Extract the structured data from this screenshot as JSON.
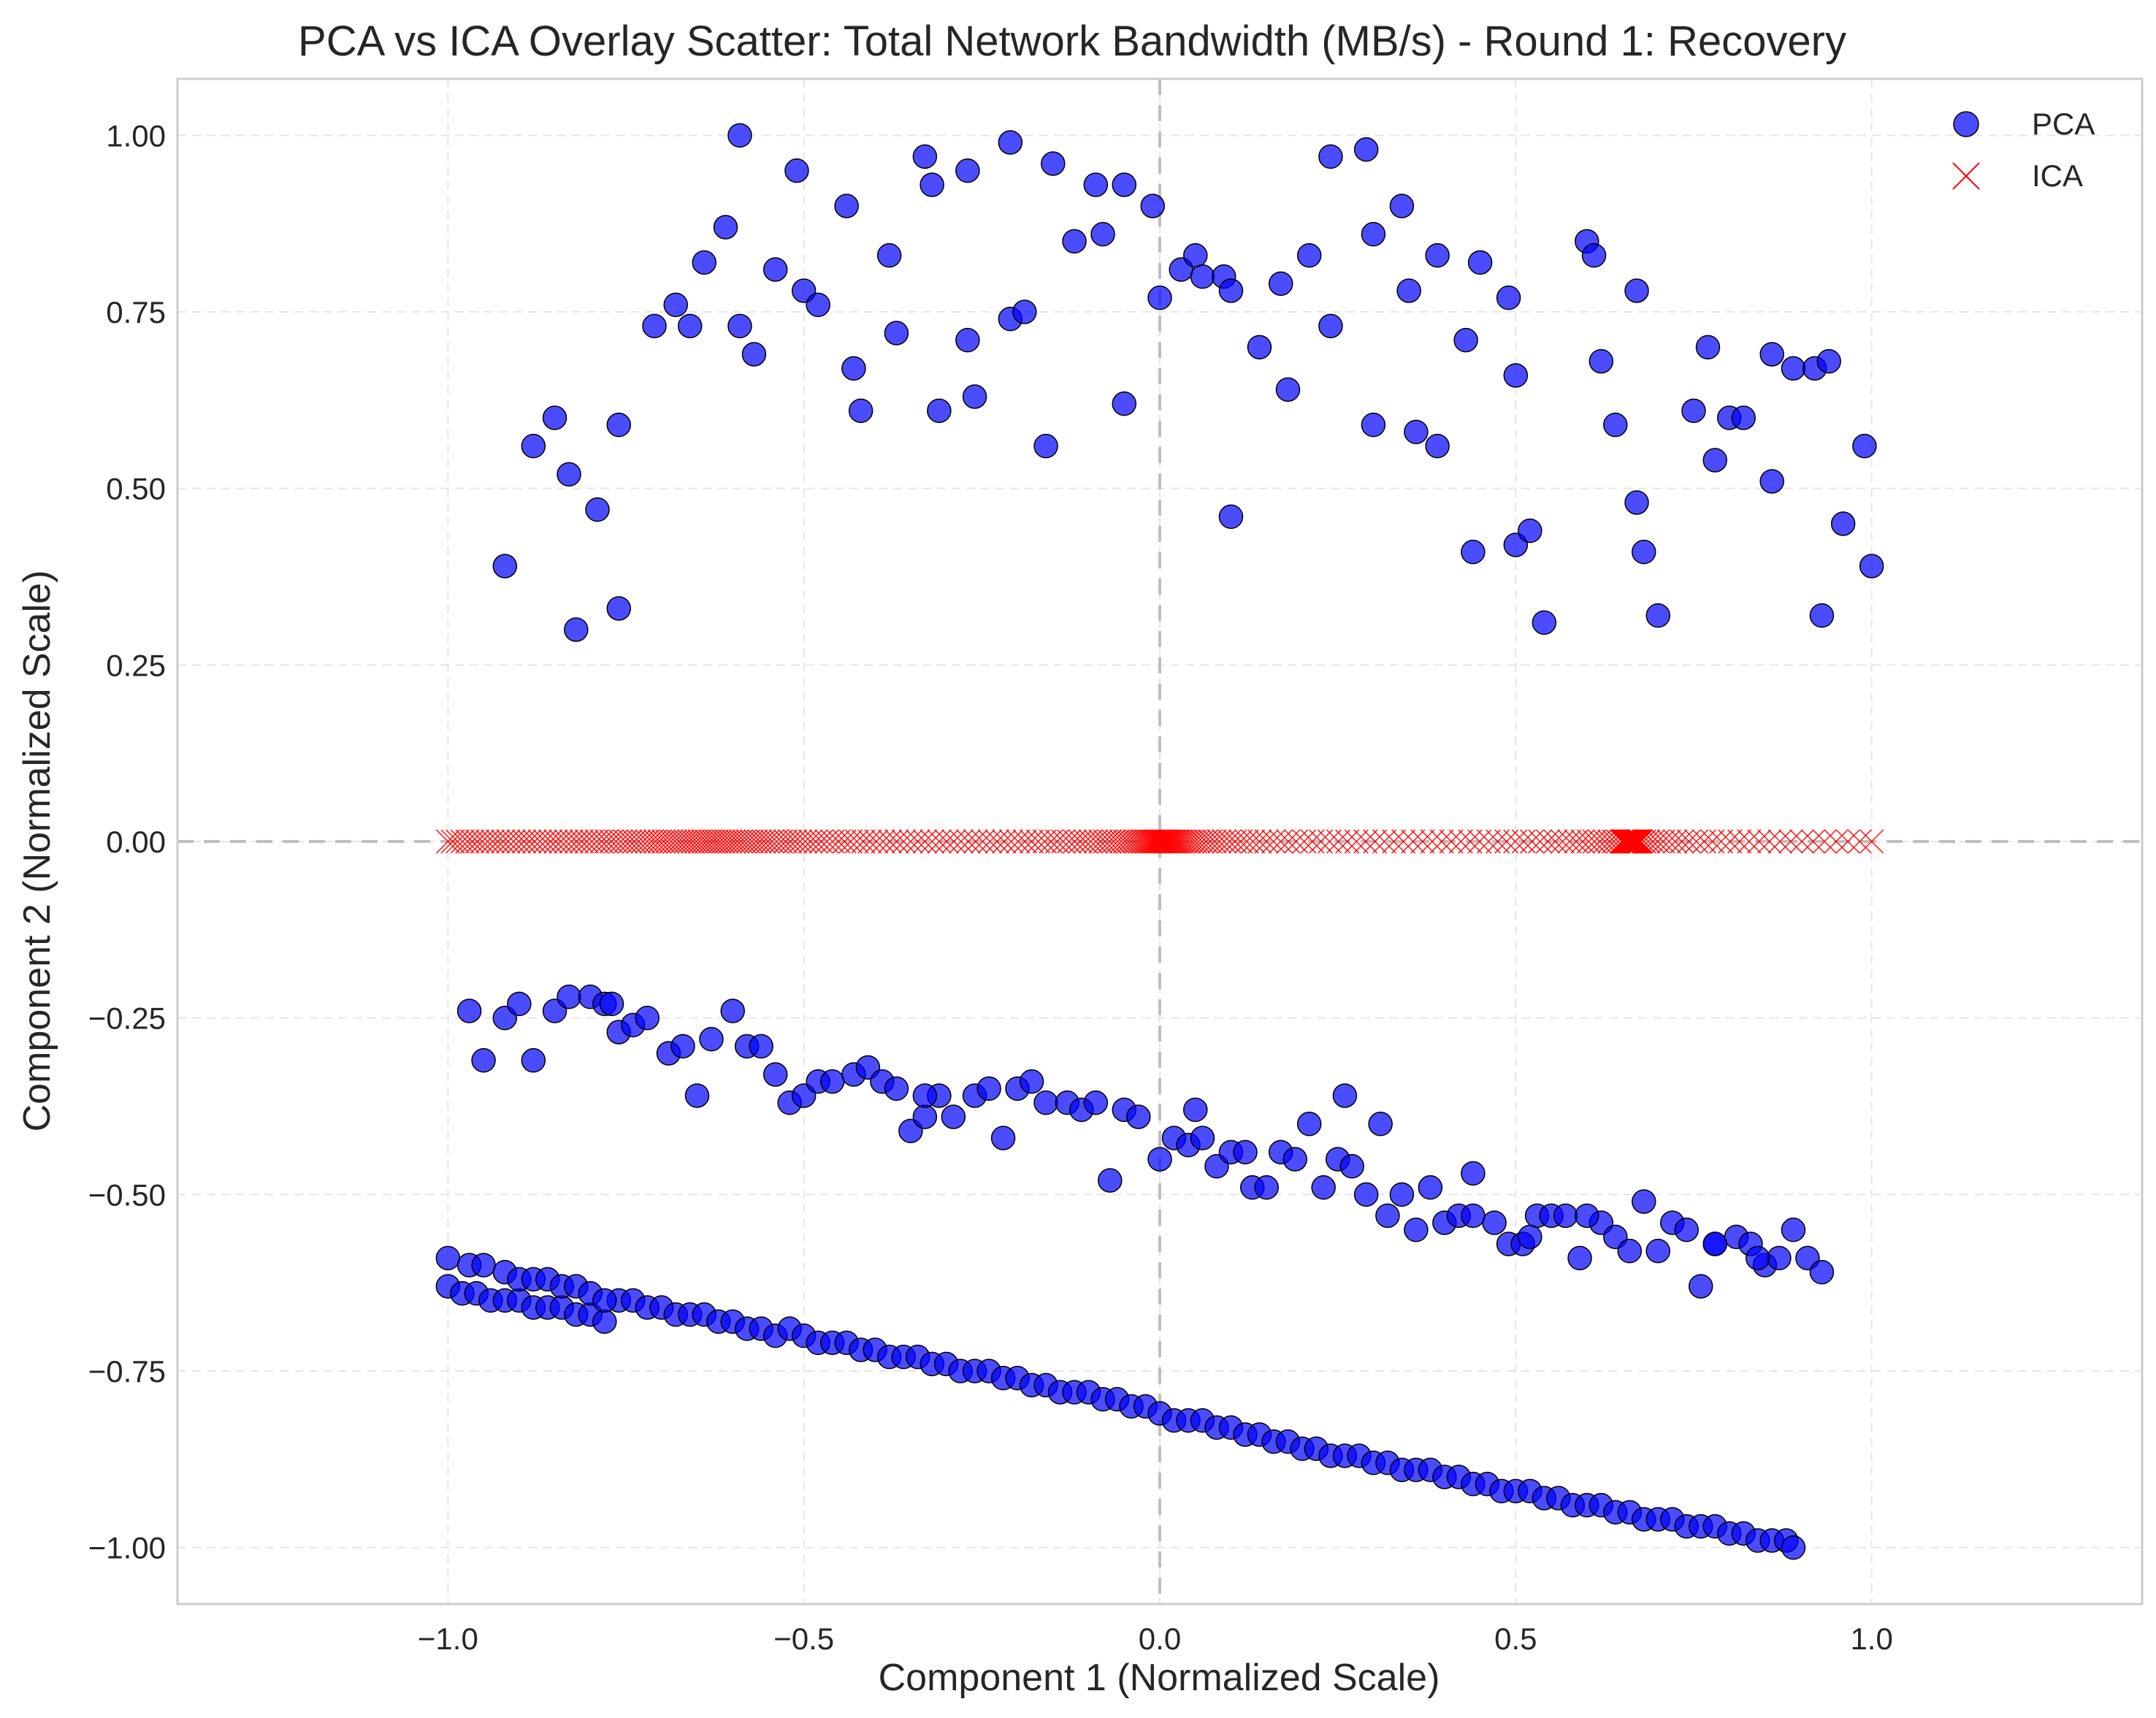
{
  "chart_data": {
    "type": "scatter",
    "title": "PCA vs ICA Overlay Scatter: Total Network Bandwidth (MB/s) - Round 1: Recovery",
    "xlabel": "Component 1 (Normalized Scale)",
    "ylabel": "Component 2 (Normalized Scale)",
    "xlim": [
      -1.38,
      1.38
    ],
    "ylim": [
      -1.08,
      1.08
    ],
    "xticks": [
      -1.0,
      -0.5,
      0.0,
      0.5,
      1.0
    ],
    "xtick_labels": [
      "−1.0",
      "−0.5",
      "0.0",
      "0.5",
      "1.0"
    ],
    "yticks": [
      1.0,
      0.75,
      0.5,
      0.25,
      0.0,
      -0.25,
      -0.5,
      -0.75,
      -1.0
    ],
    "ytick_labels": [
      "1.00",
      "0.75",
      "0.50",
      "0.25",
      "0.00",
      "−0.25",
      "−0.50",
      "−0.75",
      "−1.00"
    ],
    "grid": true,
    "reference_lines": {
      "x": 0,
      "y": 0
    },
    "legend": {
      "position": "top-right",
      "entries": [
        "PCA",
        "ICA"
      ]
    },
    "colors": {
      "pca_fill": "#0000ff",
      "pca_edge": "#000000",
      "ica": "#ff0000",
      "grid": "#e6e6e6",
      "ref_line": "#bfbfbf"
    },
    "series": [
      {
        "name": "PCA",
        "marker": "circle",
        "upper_arc": {
          "x": [
            -0.92,
            -0.88,
            -0.85,
            -0.83,
            -0.82,
            -0.79,
            -0.76,
            -0.76,
            -0.71,
            -0.68,
            -0.66,
            -0.64,
            -0.61,
            -0.59,
            -0.59,
            -0.57,
            -0.54,
            -0.51,
            -0.5,
            -0.48,
            -0.44,
            -0.43,
            -0.42,
            -0.38,
            -0.37,
            -0.33,
            -0.32,
            -0.31,
            -0.27,
            -0.27,
            -0.26,
            -0.21,
            -0.21,
            -0.19,
            -0.15,
            -0.16,
            -0.12,
            -0.09,
            -0.08,
            -0.05,
            -0.05,
            -0.01,
            0.0,
            0.03,
            0.05,
            0.06,
            0.09,
            0.1,
            0.1,
            0.14,
            0.17,
            0.18,
            0.21,
            0.24,
            0.24,
            0.29,
            0.3,
            0.3,
            0.34,
            0.35,
            0.36,
            0.39,
            0.39,
            0.43,
            0.44,
            0.45,
            0.49,
            0.5,
            0.5,
            0.52,
            0.54,
            0.6,
            0.61,
            0.62,
            0.64,
            0.67,
            0.67,
            0.68,
            0.7,
            0.75,
            0.77,
            0.78,
            0.8,
            0.82,
            0.86,
            0.86,
            0.89,
            0.92,
            0.93,
            0.94,
            0.96,
            0.99,
            1.0
          ],
          "y": [
            0.39,
            0.56,
            0.6,
            0.52,
            0.3,
            0.47,
            0.59,
            0.33,
            0.73,
            0.76,
            0.73,
            0.82,
            0.87,
            1.0,
            0.73,
            0.69,
            0.81,
            0.95,
            0.78,
            0.76,
            0.9,
            0.67,
            0.61,
            0.83,
            0.72,
            0.97,
            0.93,
            0.61,
            0.95,
            0.71,
            0.63,
            0.99,
            0.74,
            0.75,
            0.96,
            0.56,
            0.85,
            0.93,
            0.86,
            0.93,
            0.62,
            0.9,
            0.77,
            0.81,
            0.83,
            0.8,
            0.8,
            0.78,
            0.46,
            0.7,
            0.79,
            0.64,
            0.83,
            0.97,
            0.73,
            0.98,
            0.86,
            0.59,
            0.9,
            0.78,
            0.58,
            0.83,
            0.56,
            0.71,
            0.41,
            0.82,
            0.77,
            0.66,
            0.42,
            0.44,
            0.31,
            0.85,
            0.83,
            0.68,
            0.59,
            0.78,
            0.48,
            0.41,
            0.32,
            0.61,
            0.7,
            0.54,
            0.6,
            0.6,
            0.69,
            0.51,
            0.67,
            0.67,
            0.32,
            0.68,
            0.45,
            0.56,
            0.39
          ]
        },
        "middle_band": {
          "x": [
            -0.97,
            -0.95,
            -0.92,
            -0.9,
            -0.88,
            -0.85,
            -0.83,
            -0.8,
            -0.78,
            -0.76,
            -0.74,
            -0.72,
            -0.69,
            -0.67,
            -0.65,
            -0.63,
            -0.6,
            -0.58,
            -0.56,
            -0.54,
            -0.52,
            -0.5,
            -0.48,
            -0.46,
            -0.43,
            -0.41,
            -0.39,
            -0.37,
            -0.35,
            -0.33,
            -0.31,
            -0.29,
            -0.26,
            -0.24,
            -0.22,
            -0.2,
            -0.18,
            -0.16,
            -0.13,
            -0.11,
            -0.09,
            -0.07,
            -0.05,
            -0.03,
            0.0,
            0.02,
            0.04,
            0.06,
            0.08,
            0.1,
            0.13,
            0.15,
            0.17,
            0.19,
            0.21,
            0.23,
            0.25,
            0.27,
            0.29,
            0.32,
            0.34,
            0.36,
            0.38,
            0.4,
            0.42,
            0.44,
            0.47,
            0.49,
            0.51,
            0.53,
            0.55,
            0.57,
            0.59,
            0.62,
            0.64,
            0.66,
            0.68,
            0.7,
            0.72,
            0.74,
            0.76,
            0.78,
            0.81,
            0.83,
            0.85,
            0.87,
            0.89,
            0.91,
            0.93,
            -0.77,
            -0.33,
            0.05,
            0.12,
            0.26,
            0.31,
            0.44,
            0.52,
            0.6,
            0.78,
            0.84
          ],
          "y": [
            -0.24,
            -0.31,
            -0.25,
            -0.23,
            -0.31,
            -0.24,
            -0.22,
            -0.22,
            -0.23,
            -0.27,
            -0.26,
            -0.25,
            -0.3,
            -0.29,
            -0.36,
            -0.28,
            -0.24,
            -0.29,
            -0.29,
            -0.33,
            -0.37,
            -0.36,
            -0.34,
            -0.34,
            -0.33,
            -0.32,
            -0.34,
            -0.35,
            -0.41,
            -0.39,
            -0.36,
            -0.39,
            -0.36,
            -0.35,
            -0.42,
            -0.35,
            -0.34,
            -0.37,
            -0.37,
            -0.38,
            -0.37,
            -0.48,
            -0.38,
            -0.39,
            -0.45,
            -0.42,
            -0.43,
            -0.42,
            -0.46,
            -0.44,
            -0.49,
            -0.49,
            -0.44,
            -0.45,
            -0.4,
            -0.49,
            -0.45,
            -0.46,
            -0.5,
            -0.53,
            -0.5,
            -0.55,
            -0.49,
            -0.54,
            -0.53,
            -0.47,
            -0.54,
            -0.57,
            -0.57,
            -0.53,
            -0.53,
            -0.53,
            -0.59,
            -0.54,
            -0.56,
            -0.58,
            -0.51,
            -0.58,
            -0.54,
            -0.55,
            -0.63,
            -0.57,
            -0.56,
            -0.57,
            -0.6,
            -0.59,
            -0.55,
            -0.59,
            -0.61,
            -0.23,
            -0.36,
            -0.38,
            -0.44,
            -0.36,
            -0.4,
            -0.53,
            -0.56,
            -0.53,
            -0.57,
            -0.59
          ]
        },
        "lower_line": {
          "x": [
            -1.0,
            -0.98,
            -0.96,
            -0.94,
            -0.92,
            -0.9,
            -0.88,
            -0.86,
            -0.84,
            -0.82,
            -0.8,
            -0.78,
            -0.76,
            -0.74,
            -0.72,
            -0.7,
            -0.68,
            -0.66,
            -0.64,
            -0.62,
            -0.6,
            -0.58,
            -0.56,
            -0.54,
            -0.52,
            -0.5,
            -0.48,
            -0.46,
            -0.44,
            -0.42,
            -0.4,
            -0.38,
            -0.36,
            -0.34,
            -0.32,
            -0.3,
            -0.28,
            -0.26,
            -0.24,
            -0.22,
            -0.2,
            -0.18,
            -0.16,
            -0.14,
            -0.12,
            -0.1,
            -0.08,
            -0.06,
            -0.04,
            -0.02,
            0.0,
            0.02,
            0.04,
            0.06,
            0.08,
            0.1,
            0.12,
            0.14,
            0.16,
            0.18,
            0.2,
            0.22,
            0.24,
            0.26,
            0.28,
            0.3,
            0.32,
            0.34,
            0.36,
            0.38,
            0.4,
            0.42,
            0.44,
            0.46,
            0.48,
            0.5,
            0.52,
            0.54,
            0.56,
            0.58,
            0.6,
            0.62,
            0.64,
            0.66,
            0.68,
            0.7,
            0.72,
            0.74,
            0.76,
            0.78,
            0.8,
            0.82,
            0.84,
            0.86,
            0.88,
            0.89,
            -1.0,
            -0.97,
            -0.95,
            -0.92,
            -0.9,
            -0.88,
            -0.86,
            -0.84,
            -0.82,
            -0.8,
            -0.78
          ],
          "y": [
            -0.63,
            -0.64,
            -0.64,
            -0.65,
            -0.65,
            -0.65,
            -0.66,
            -0.66,
            -0.66,
            -0.67,
            -0.67,
            -0.68,
            -0.65,
            -0.65,
            -0.66,
            -0.66,
            -0.67,
            -0.67,
            -0.67,
            -0.68,
            -0.68,
            -0.69,
            -0.69,
            -0.7,
            -0.69,
            -0.7,
            -0.71,
            -0.71,
            -0.71,
            -0.72,
            -0.72,
            -0.73,
            -0.73,
            -0.73,
            -0.74,
            -0.74,
            -0.75,
            -0.75,
            -0.75,
            -0.76,
            -0.76,
            -0.77,
            -0.77,
            -0.78,
            -0.78,
            -0.78,
            -0.79,
            -0.79,
            -0.8,
            -0.8,
            -0.81,
            -0.82,
            -0.82,
            -0.82,
            -0.83,
            -0.83,
            -0.84,
            -0.84,
            -0.85,
            -0.85,
            -0.86,
            -0.86,
            -0.87,
            -0.87,
            -0.87,
            -0.88,
            -0.88,
            -0.89,
            -0.89,
            -0.89,
            -0.9,
            -0.9,
            -0.91,
            -0.91,
            -0.92,
            -0.92,
            -0.92,
            -0.93,
            -0.93,
            -0.94,
            -0.94,
            -0.94,
            -0.95,
            -0.95,
            -0.96,
            -0.96,
            -0.96,
            -0.97,
            -0.97,
            -0.97,
            -0.98,
            -0.98,
            -0.99,
            -0.99,
            -0.99,
            -1.0,
            -0.59,
            -0.6,
            -0.6,
            -0.61,
            -0.62,
            -0.62,
            -0.62,
            -0.63,
            -0.63,
            -0.64,
            -0.65
          ]
        }
      },
      {
        "name": "ICA",
        "marker": "x",
        "y_value": 0.0,
        "x_range": [
          -1.0,
          1.0
        ],
        "count": 300
      }
    ]
  }
}
